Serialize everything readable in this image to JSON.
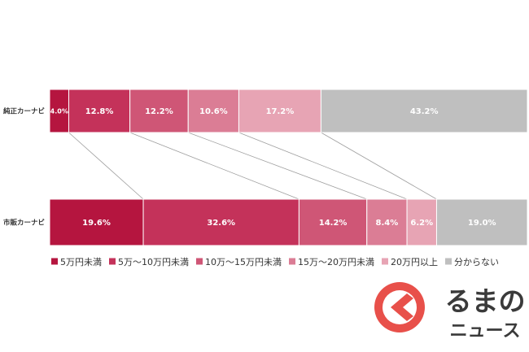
{
  "chart_data": {
    "type": "bar",
    "stacked": true,
    "orientation": "horizontal",
    "normalized": "percent",
    "categories": [
      "純正カーナビ",
      "市販カーナビ"
    ],
    "series": [
      {
        "name": "5万円未満",
        "color": "#b5153f",
        "values": [
          4.0,
          19.6
        ]
      },
      {
        "name": "5万～10万円未満",
        "color": "#c4325a",
        "values": [
          12.8,
          32.6
        ]
      },
      {
        "name": "10万～15万円未満",
        "color": "#cf5676",
        "values": [
          12.2,
          14.2
        ]
      },
      {
        "name": "15万～20万円未満",
        "color": "#db7d95",
        "values": [
          10.6,
          8.4
        ]
      },
      {
        "name": "20万円以上",
        "color": "#e7a4b4",
        "values": [
          17.2,
          6.2
        ]
      },
      {
        "name": "分からない",
        "color": "#bfbfbf",
        "values": [
          43.2,
          19.0
        ]
      }
    ],
    "data_labels": [
      [
        "4.0%",
        "12.8%",
        "12.2%",
        "10.6%",
        "17.2%",
        "43.2%"
      ],
      [
        "19.6%",
        "32.6%",
        "14.2%",
        "8.4%",
        "6.2%",
        "19.0%"
      ]
    ],
    "legend_position": "bottom",
    "grid": false,
    "series_lines": true
  },
  "logo": {
    "text_top": "るまの",
    "text_bottom": "ニュース",
    "colors": {
      "accent": "#e8504a",
      "text": "#3a3a3a"
    }
  }
}
